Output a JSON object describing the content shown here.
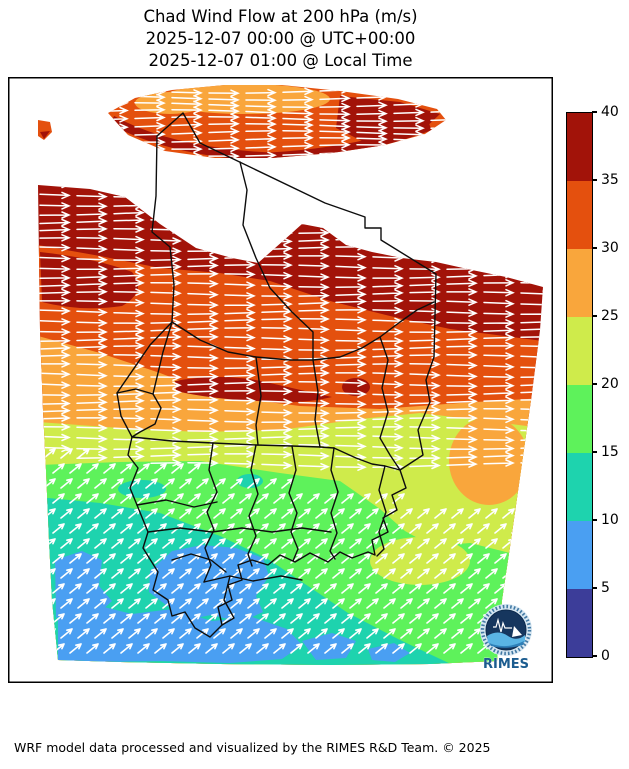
{
  "title": {
    "line1": "Chad Wind Flow at 200 hPa (m/s)",
    "line2": "2025-12-07 00:00 @ UTC+00:00",
    "line3": "2025-12-07 01:00 @ Local Time"
  },
  "footer": {
    "credit": "WRF model data processed and visualized by the RIMES R&D Team. © 2025"
  },
  "logo": {
    "label": "RIMES"
  },
  "chart_data": {
    "type": "heatmap",
    "title": "Chad Wind Flow at 200 hPa (m/s)",
    "subtitle_utc": "2025-12-07 00:00 @ UTC+00:00",
    "subtitle_local": "2025-12-07 01:00 @ Local Time",
    "variable": "wind speed",
    "units": "m/s",
    "level": "200 hPa",
    "region": "Chad and surroundings",
    "colorbar": {
      "min": 0,
      "max": 40,
      "tick_step": 5,
      "ticks": [
        40,
        35,
        30,
        25,
        20,
        15,
        10,
        5,
        0
      ],
      "segments_top_to_bottom": [
        {
          "range": "35-40",
          "color": "#a21309"
        },
        {
          "range": "30-35",
          "color": "#e4500e"
        },
        {
          "range": "25-30",
          "color": "#f9a63c"
        },
        {
          "range": "20-25",
          "color": "#cfeb4b"
        },
        {
          "range": "15-20",
          "color": "#5ef25b"
        },
        {
          "range": "10-15",
          "color": "#1ed3ae"
        },
        {
          "range": "5-10",
          "color": "#4a9ff2"
        },
        {
          "range": "0-5",
          "color": "#3c3d99"
        }
      ]
    },
    "field_summary": {
      "far_north_band": "35-40 m/s easterly jet streak across northern Tibesti",
      "north_gap": "white no-data band across far-northern Chad",
      "central": "25-40 m/s easterly flow (dark red to orange bands)",
      "center_south": "15-25 m/s flow (yellow-green to green)",
      "south": "5-15 m/s north-easterly flow (teal with blue patches)"
    },
    "flow_direction": {
      "north": "eastward",
      "south": "north-eastward"
    }
  }
}
